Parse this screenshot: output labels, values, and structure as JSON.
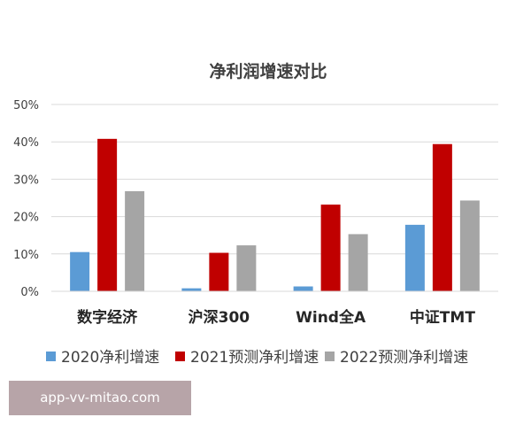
{
  "chart_data": {
    "type": "bar",
    "title": "净利润增速对比",
    "categories": [
      "数字经济",
      "沪深300",
      "Wind全A",
      "中证TMT"
    ],
    "series": [
      {
        "name": "2020净利增速",
        "color": "#5b9bd5",
        "values": [
          10.5,
          0.8,
          1.3,
          17.8
        ]
      },
      {
        "name": "2021预测净利增速",
        "color": "#c00000",
        "values": [
          40.8,
          10.3,
          23.2,
          39.4
        ]
      },
      {
        "name": "2022预测净利增速",
        "color": "#a5a5a5",
        "values": [
          26.8,
          12.3,
          15.3,
          24.3
        ]
      }
    ],
    "ylim": [
      0,
      50
    ],
    "yticks": [
      "0%",
      "10%",
      "20%",
      "30%",
      "40%",
      "50%"
    ],
    "ytick_values": [
      0,
      10,
      20,
      30,
      40,
      50
    ],
    "grid": true,
    "legend_position": "bottom"
  },
  "watermark": "app-vv-mitao.com"
}
